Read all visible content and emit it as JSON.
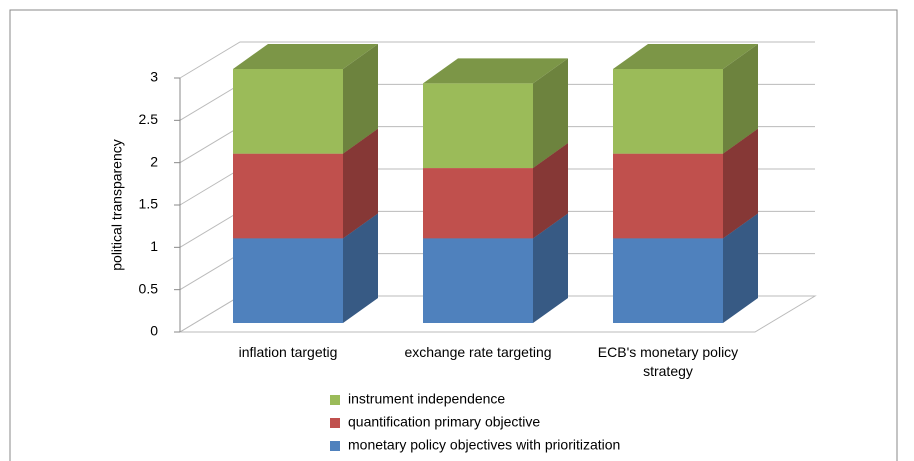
{
  "chart_data": {
    "type": "bar",
    "stacked": true,
    "three_d": true,
    "y_label": "political transparency",
    "categories": [
      "inflation targetig",
      "exchange rate targeting",
      "ECB's monetary policy strategy"
    ],
    "series": [
      {
        "name": "monetary policy objectives with prioritization",
        "color": "#4f81bd",
        "values": [
          1,
          1,
          1
        ]
      },
      {
        "name": "quantification primary objective",
        "color": "#c0504d",
        "values": [
          1,
          0.83,
          1
        ]
      },
      {
        "name": "instrument independence",
        "color": "#9bbb59",
        "values": [
          1,
          1,
          1
        ]
      }
    ],
    "ylim": [
      0,
      3
    ],
    "yticks": [
      0,
      0.5,
      1,
      1.5,
      2,
      2.5,
      3
    ],
    "grid": true
  }
}
